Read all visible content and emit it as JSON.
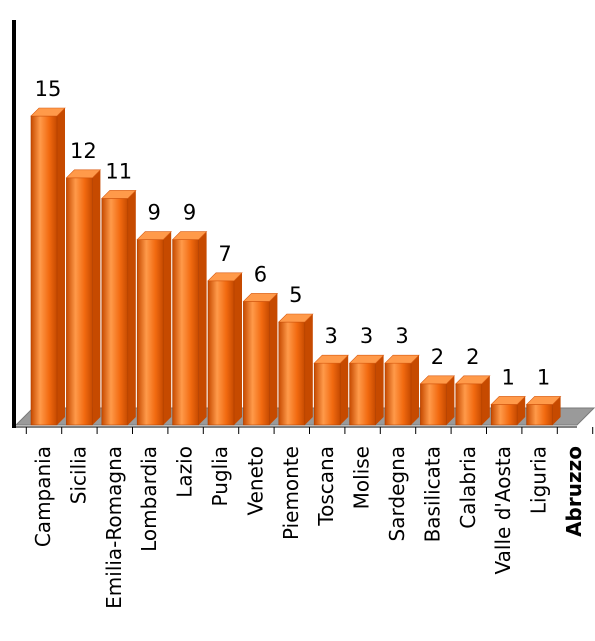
{
  "chart_data": {
    "type": "bar",
    "title": "",
    "xlabel": "",
    "ylabel": "",
    "categories": [
      "Campania",
      "Sicilia",
      "Emilia-Romagna",
      "Lombardia",
      "Lazio",
      "Puglia",
      "Veneto",
      "Piemonte",
      "Toscana",
      "Molise",
      "Sardegna",
      "Basilicata",
      "Calabria",
      "Valle d'Aosta",
      "Liguria",
      "Abruzzo"
    ],
    "values": [
      15,
      12,
      11,
      9,
      9,
      7,
      6,
      5,
      3,
      3,
      3,
      2,
      2,
      1,
      1,
      null
    ],
    "ylim": [
      0,
      15
    ],
    "grid": false,
    "legend": "none",
    "highlighted_category": "Abruzzo",
    "colors": {
      "bar_front": "#f26a10",
      "bar_side": "#c64a00",
      "bar_top": "#ff9a4a",
      "floor": "#9a9a9a",
      "axis": "#000000"
    }
  }
}
